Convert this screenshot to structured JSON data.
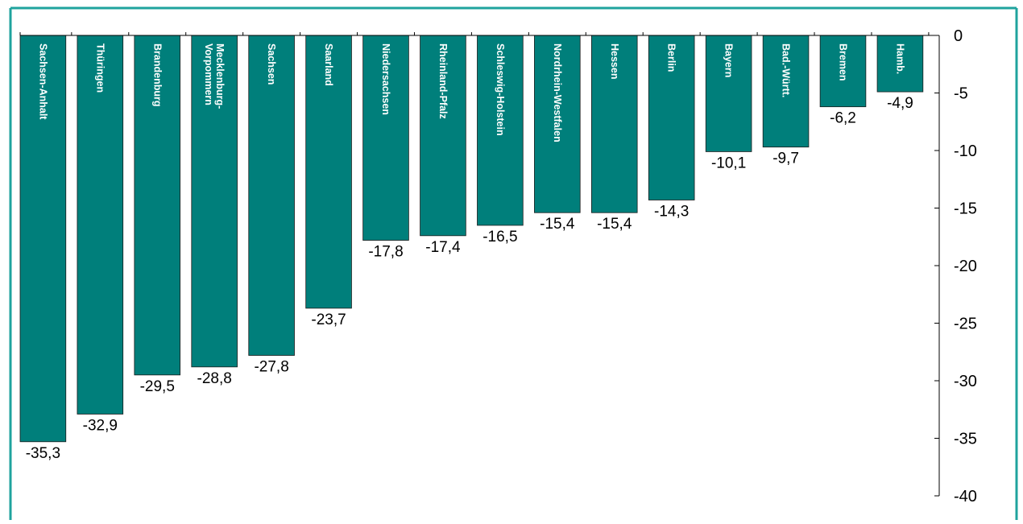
{
  "colors": {
    "bar": "#007F7B",
    "frame": "#1FA39E",
    "axis": "#000000",
    "text": "#000000",
    "bar_label_text": "#ffffff"
  },
  "chart_data": {
    "type": "bar",
    "orientation": "vertical-downward",
    "categories": [
      "Sachsen-Anhalt",
      "Thüringen",
      "Brandenburg",
      "Mecklenburg-\nVorpommern",
      "Sachsen",
      "Saarland",
      "Niedersachsen",
      "Rheinland-Pfalz",
      "Schleswig-Holstein",
      "Nordrhein-Westfalen",
      "Hessen",
      "Berlin",
      "Bayern",
      "Bad.-Württ.",
      "Bremen",
      "Hamb."
    ],
    "values": [
      -35.3,
      -32.9,
      -29.5,
      -28.8,
      -27.8,
      -23.7,
      -17.8,
      -17.4,
      -16.5,
      -15.4,
      -15.4,
      -14.3,
      -10.1,
      -9.7,
      -6.2,
      -4.9
    ],
    "value_labels": [
      "-35,3",
      "-32,9",
      "-29,5",
      "-28,8",
      "-27,8",
      "-23,7",
      "-17,8",
      "-17,4",
      "-16,5",
      "-15,4",
      "-15,4",
      "-14,3",
      "-10,1",
      "-9,7",
      "-6,2",
      "-4,9"
    ],
    "ylim": [
      -40,
      0
    ],
    "yticks": [
      0,
      -5,
      -10,
      -15,
      -20,
      -25,
      -30,
      -35,
      -40
    ],
    "ytick_labels": [
      "0",
      "-5",
      "-10",
      "-15",
      "-20",
      "-25",
      "-30",
      "-35",
      "-40"
    ],
    "y_axis_side": "right",
    "grid": false,
    "legend": "none",
    "title": "",
    "xlabel": "",
    "ylabel": ""
  }
}
